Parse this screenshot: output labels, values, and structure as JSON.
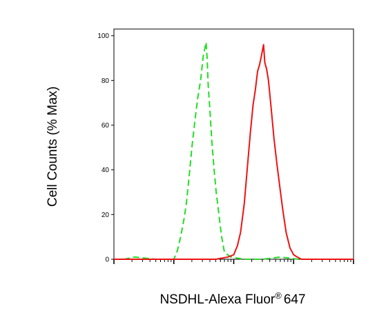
{
  "chart_data": {
    "type": "line",
    "title": "",
    "xlabel": "NSDHL-Alexa Fluor",
    "xlabel_superscript": "®",
    "xlabel_suffix": "647",
    "ylabel": "Cell Counts (% Max)",
    "x_scale": "log",
    "xlim": [
      10,
      100000
    ],
    "ylim": [
      0,
      103
    ],
    "y_ticks": [
      0,
      20,
      40,
      60,
      80,
      100
    ],
    "y_tick_labels": [
      "0",
      "20",
      "40",
      "60",
      "80",
      "100"
    ],
    "grid": false,
    "series": [
      {
        "color": "#22dd22",
        "dashed": true,
        "x": [
          10,
          15,
          22,
          50,
          100,
          115,
          130,
          148,
          162,
          180,
          200,
          225,
          250,
          280,
          310,
          345,
          360,
          375,
          405,
          430,
          470,
          510,
          560,
          620,
          700,
          900,
          1500,
          3000,
          6000,
          12000,
          30000,
          100000
        ],
        "y": [
          0,
          0,
          1,
          0,
          0,
          4,
          10,
          18,
          25,
          37,
          50,
          62,
          72,
          80,
          91,
          97,
          90,
          78,
          65,
          53,
          40,
          30,
          21,
          11,
          3,
          1,
          0,
          0,
          1,
          0,
          0,
          0
        ]
      },
      {
        "color": "#ee1111",
        "dashed": false,
        "x": [
          10,
          100,
          500,
          800,
          1000,
          1150,
          1300,
          1500,
          1700,
          1900,
          2100,
          2300,
          2500,
          2700,
          2900,
          3150,
          3300,
          3550,
          3800,
          4200,
          4700,
          5300,
          5900,
          6600,
          7500,
          8700,
          10000,
          11500,
          13500,
          16000,
          20000,
          100000
        ],
        "y": [
          0,
          0,
          0,
          1,
          2,
          6,
          12,
          25,
          42,
          57,
          69,
          76,
          84,
          87,
          91,
          96,
          88,
          85,
          80,
          68,
          54,
          42,
          32,
          22,
          12,
          5,
          2,
          1,
          0,
          0,
          0,
          0
        ]
      }
    ]
  }
}
